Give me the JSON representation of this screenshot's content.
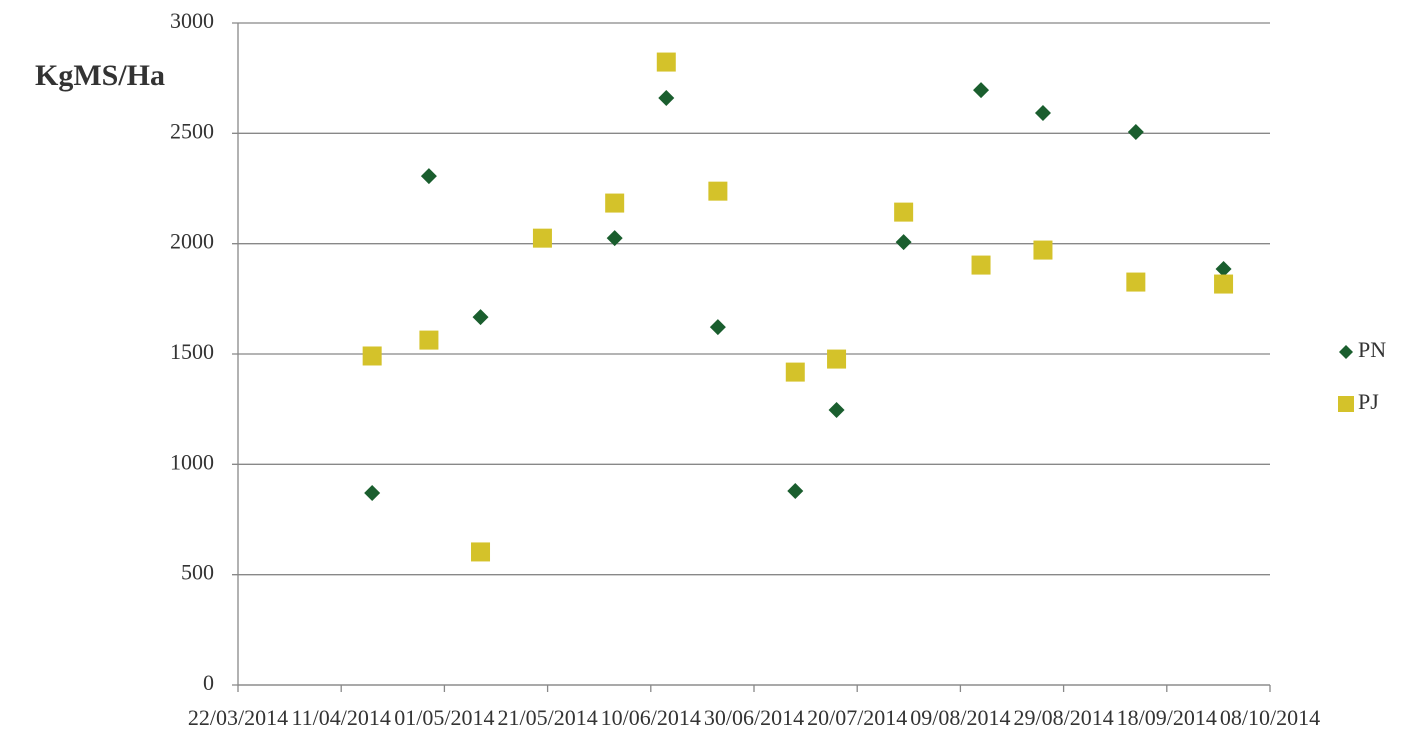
{
  "chart_data": {
    "type": "scatter",
    "y_label": "KgMS/Ha",
    "xlim": [
      "2014-03-22",
      "2014-10-08"
    ],
    "xticks": [
      {
        "value": "2014-03-22",
        "label": "22/03/2014"
      },
      {
        "value": "2014-04-11",
        "label": "11/04/2014"
      },
      {
        "value": "2014-05-01",
        "label": "01/05/2014"
      },
      {
        "value": "2014-05-21",
        "label": "21/05/2014"
      },
      {
        "value": "2014-06-10",
        "label": "10/06/2014"
      },
      {
        "value": "2014-06-30",
        "label": "30/06/2014"
      },
      {
        "value": "2014-07-20",
        "label": "20/07/2014"
      },
      {
        "value": "2014-08-09",
        "label": "09/08/2014"
      },
      {
        "value": "2014-08-29",
        "label": "29/08/2014"
      },
      {
        "value": "2014-09-18",
        "label": "18/09/2014"
      },
      {
        "value": "2014-10-08",
        "label": "08/10/2014"
      }
    ],
    "ylim": [
      0,
      3000
    ],
    "yticks": [
      0,
      500,
      1000,
      1500,
      2000,
      2500,
      3000
    ],
    "grid": true,
    "legend": "right",
    "series": [
      {
        "name": "PN",
        "color": "#1a5e2e",
        "marker": "diamond",
        "x": [
          "2014-04-17",
          "2014-04-28",
          "2014-05-08",
          "2014-06-03",
          "2014-06-13",
          "2014-06-23",
          "2014-07-08",
          "2014-07-16",
          "2014-07-29",
          "2014-08-13",
          "2014-08-25",
          "2014-09-12",
          "2014-09-29"
        ],
        "values": [
          870,
          2306,
          1667,
          2025,
          2660,
          1622,
          879,
          1246,
          2007,
          2696,
          2592,
          2506,
          1885
        ]
      },
      {
        "name": "PJ",
        "color": "#d4c22a",
        "marker": "square",
        "x": [
          "2014-04-17",
          "2014-04-28",
          "2014-05-08",
          "2014-05-20",
          "2014-06-03",
          "2014-06-13",
          "2014-06-23",
          "2014-07-08",
          "2014-07-16",
          "2014-07-29",
          "2014-08-13",
          "2014-08-25",
          "2014-09-12",
          "2014-09-29"
        ],
        "values": [
          1491,
          1563,
          603,
          2025,
          2184,
          2823,
          2238,
          1418,
          1477,
          2143,
          1903,
          1971,
          1826,
          1817
        ]
      }
    ]
  }
}
